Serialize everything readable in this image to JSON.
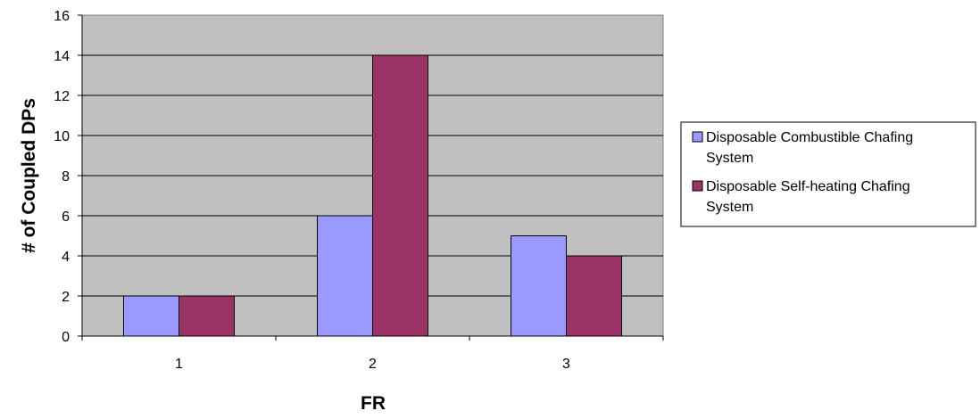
{
  "chart_data": {
    "type": "bar",
    "categories": [
      "1",
      "2",
      "3"
    ],
    "series": [
      {
        "name": "Disposable Combustible Chafing System",
        "values": [
          2,
          6,
          5
        ],
        "color": "#9999ff"
      },
      {
        "name": "Disposable Self-heating Chafing System",
        "values": [
          2,
          14,
          4
        ],
        "color": "#993366"
      }
    ],
    "xlabel": "FR",
    "ylabel": "# of Coupled DPs",
    "ylim": [
      0,
      16
    ],
    "yticks": [
      0,
      2,
      4,
      6,
      8,
      10,
      12,
      14,
      16
    ],
    "grid": true,
    "plot_background": "#c0c0c0",
    "legend_position": "right",
    "legend_lines": [
      [
        "Disposable Combustible Chafing",
        "System"
      ],
      [
        "Disposable Self-heating Chafing",
        "System"
      ]
    ]
  }
}
